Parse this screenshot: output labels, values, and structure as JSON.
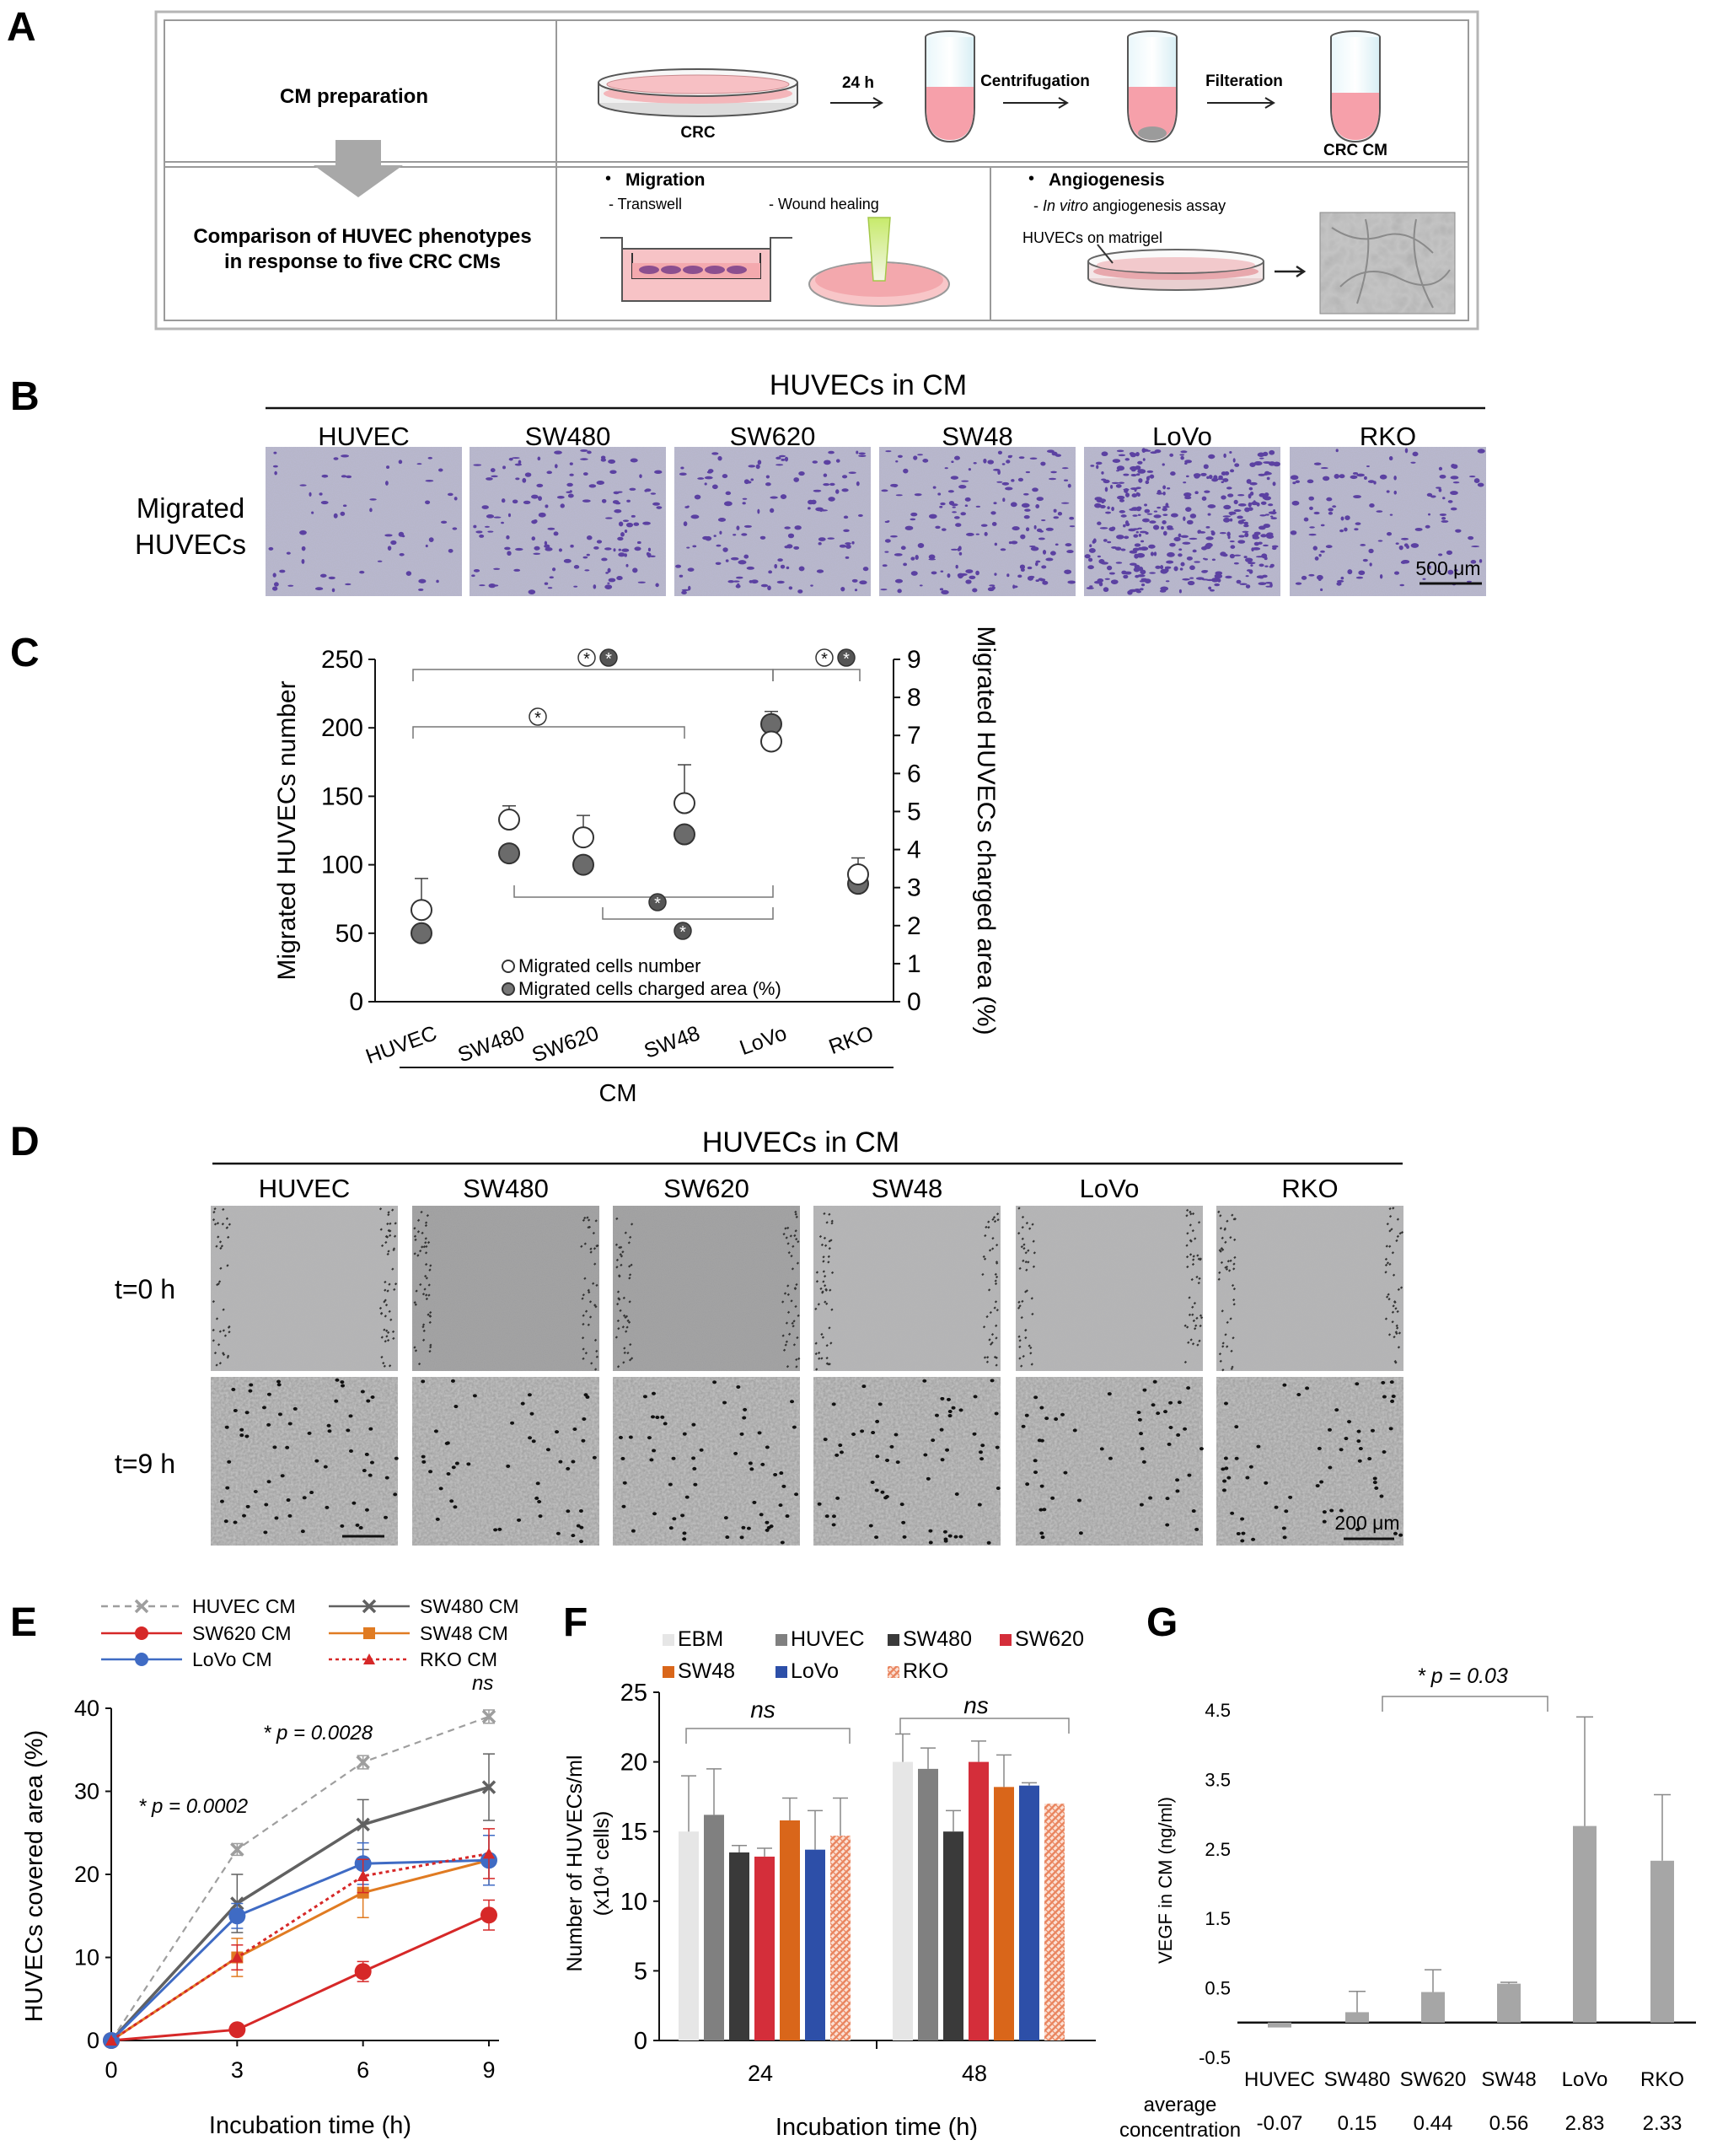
{
  "panels": [
    "A",
    "B",
    "C",
    "D",
    "E",
    "F",
    "G"
  ],
  "panelA": {
    "cm_preparation": "CM preparation",
    "time_24h": "24 h",
    "centrifugation": "Centrifugation",
    "filteration": "Filteration",
    "crc": "CRC",
    "crc_cm": "CRC CM",
    "comparison_line1": "Comparison of HUVEC phenotypes",
    "comparison_line2": "in response to five CRC CMs",
    "migration": "Migration",
    "transwell": "- Transwell",
    "wound_healing": "- Wound healing",
    "angiogenesis": "Angiogenesis",
    "in_vitro_prefix": "- ",
    "in_vitro_italic": "In vitro",
    "in_vitro_suffix": " angiogenesis assay",
    "huvecs_on_matrigel": "HUVECs on matrigel",
    "bullet": "•"
  },
  "panelB": {
    "header": "HUVECs in CM",
    "columns": [
      "HUVEC",
      "SW480",
      "SW620",
      "SW48",
      "LoVo",
      "RKO"
    ],
    "row_label_line1": "Migrated",
    "row_label_line2": "HUVECs",
    "scale_bar": "500 μm"
  },
  "panelD": {
    "header": "HUVECs in CM",
    "columns": [
      "HUVEC",
      "SW480",
      "SW620",
      "SW48",
      "LoVo",
      "RKO"
    ],
    "rows": [
      "t=0 h",
      "t=9 h"
    ],
    "scale_bar": "200 μm"
  },
  "chart_data": [
    {
      "panel": "C",
      "type": "scatter",
      "categories": [
        "HUVEC",
        "SW480",
        "SW620",
        "SW48",
        "LoVo",
        "RKO"
      ],
      "xlabel": "CM",
      "ylabel": "Migrated HUVECs number",
      "y2label": "Migrated HUVECs charged area (%)",
      "ylim": [
        0,
        250
      ],
      "yticks": [
        0,
        50,
        100,
        150,
        200,
        250
      ],
      "y2lim": [
        0,
        9
      ],
      "y2ticks": [
        0,
        1,
        2,
        3,
        4,
        5,
        6,
        7,
        8,
        9
      ],
      "series": [
        {
          "name": "Migrated cells number",
          "axis": "left",
          "values": [
            67,
            133,
            120,
            145,
            190,
            93
          ],
          "errors": [
            23,
            10,
            16,
            28,
            22,
            12
          ]
        },
        {
          "name": "Migrated cells charged area (%)",
          "axis": "right",
          "values": [
            1.8,
            3.9,
            3.6,
            4.4,
            7.3,
            3.1
          ],
          "errors": [
            0,
            0,
            0,
            0,
            0,
            0
          ]
        }
      ],
      "annotations": [
        "*",
        "*",
        "*",
        "*",
        "*",
        "*",
        "*"
      ]
    },
    {
      "panel": "E",
      "type": "line",
      "x": [
        0,
        3,
        6,
        9
      ],
      "xlabel": "Incubation time (h)",
      "ylabel": "HUVECs covered area (%)",
      "ylim": [
        0,
        40
      ],
      "yticks": [
        0,
        10,
        20,
        30,
        40
      ],
      "series": [
        {
          "name": "HUVEC CM",
          "color": "#9e9e9e",
          "values": [
            0,
            23,
            33.5,
            39
          ],
          "errors": [
            0,
            0.7,
            0.8,
            0.8
          ]
        },
        {
          "name": "SW480 CM",
          "color": "#616161",
          "values": [
            0,
            16.5,
            26,
            30.5
          ],
          "errors": [
            0,
            3.5,
            3,
            4
          ]
        },
        {
          "name": "SW620 CM",
          "color": "#d62828",
          "values": [
            0,
            1.3,
            8.3,
            15.1
          ],
          "errors": [
            0,
            0.3,
            1.2,
            1.8
          ]
        },
        {
          "name": "SW48 CM",
          "color": "#e07b22",
          "values": [
            0,
            10,
            17.8,
            21.7
          ],
          "errors": [
            0,
            2.3,
            3,
            3
          ]
        },
        {
          "name": "LoVo CM",
          "color": "#3f6bc4",
          "values": [
            0,
            15,
            21.3,
            21.7
          ],
          "errors": [
            0,
            1.5,
            2.5,
            3
          ]
        },
        {
          "name": "RKO CM",
          "color": "#d62828",
          "values": [
            0,
            10,
            19.8,
            22.5
          ],
          "errors": [
            0,
            1.5,
            2,
            3
          ]
        }
      ],
      "annotations": [
        "* p = 0.0002",
        "* p = 0.0028",
        "ns"
      ]
    },
    {
      "panel": "F",
      "type": "bar",
      "categories": [
        "24",
        "48"
      ],
      "xlabel": "Incubation time (h)",
      "ylabel_line1": "Number of HUVECs/ml",
      "ylabel_line2": "(x10⁴ cells)",
      "ylim": [
        0,
        25
      ],
      "yticks": [
        0,
        5,
        10,
        15,
        20,
        25
      ],
      "series": [
        {
          "name": "EBM",
          "color": "#e6e6e6",
          "values": [
            15,
            20
          ],
          "errors": [
            4,
            2
          ]
        },
        {
          "name": "HUVEC",
          "color": "#808080",
          "values": [
            16.2,
            19.5
          ],
          "errors": [
            3.3,
            1.5
          ]
        },
        {
          "name": "SW480",
          "color": "#3a3a3a",
          "values": [
            13.5,
            15
          ],
          "errors": [
            0.5,
            1.5
          ]
        },
        {
          "name": "SW620",
          "color": "#d42e3a",
          "values": [
            13.2,
            20
          ],
          "errors": [
            0.6,
            1.5
          ]
        },
        {
          "name": "SW48",
          "color": "#d9661a",
          "values": [
            15.8,
            18.2
          ],
          "errors": [
            1.6,
            2.3
          ]
        },
        {
          "name": "LoVo",
          "color": "#2d4fa8",
          "values": [
            13.7,
            18.3
          ],
          "errors": [
            2.8,
            0.2
          ]
        },
        {
          "name": "RKO",
          "color": "#ef9c7e",
          "values": [
            14.7,
            17
          ],
          "errors": [
            2.7,
            0
          ]
        }
      ],
      "annotations": [
        "ns",
        "ns"
      ]
    },
    {
      "panel": "G",
      "type": "bar",
      "categories": [
        "HUVEC",
        "SW480",
        "SW620",
        "SW48",
        "LoVo",
        "RKO"
      ],
      "ylabel": "VEGF in CM (ng/ml)",
      "ylim": [
        -0.5,
        4.5
      ],
      "yticks": [
        -0.5,
        0.5,
        1.5,
        2.5,
        3.5,
        4.5
      ],
      "values": [
        -0.07,
        0.15,
        0.44,
        0.56,
        2.83,
        2.33
      ],
      "errors": [
        0,
        0.3,
        0.32,
        0.02,
        1.57,
        0.95
      ],
      "color": "#a6a6a6",
      "row_label_line1": "average",
      "row_label_line2": "concentration",
      "value_labels": [
        "-0.07",
        "0.15",
        "0.44",
        "0.56",
        "2.83",
        "2.33"
      ],
      "annotations": [
        "* p = 0.03"
      ]
    }
  ]
}
